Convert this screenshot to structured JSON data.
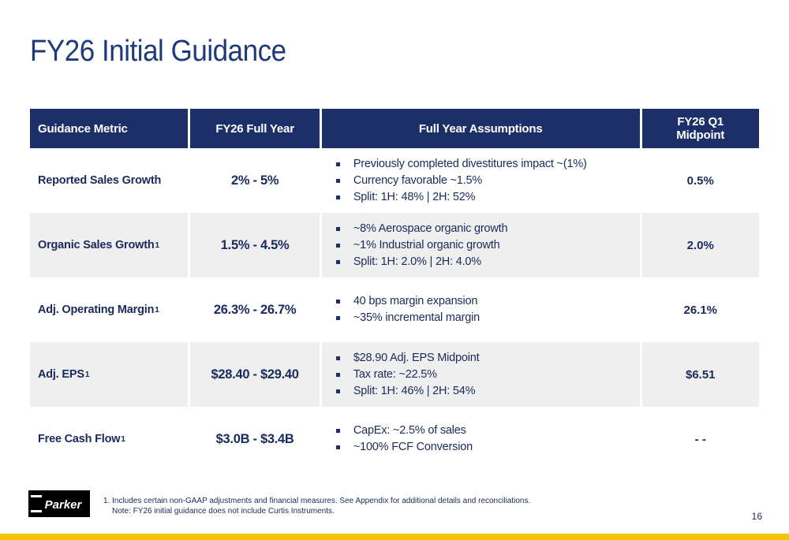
{
  "title": "FY26 Initial Guidance",
  "table": {
    "headers": {
      "metric": "Guidance Metric",
      "full_year": "FY26 Full Year",
      "assumptions": "Full Year Assumptions",
      "q1_line1": "FY26 Q1",
      "q1_line2": "Midpoint"
    },
    "rows": [
      {
        "metric": "Reported Sales Growth",
        "sup": "",
        "full_year": "2% - 5%",
        "assumptions": [
          "Previously completed divestitures impact ~(1%)",
          "Currency favorable ~1.5%",
          "Split: 1H: 48% | 2H: 52%"
        ],
        "q1": "0.5%"
      },
      {
        "metric": "Organic Sales Growth",
        "sup": "1",
        "full_year": "1.5% - 4.5%",
        "assumptions": [
          "~8% Aerospace organic growth",
          "~1% Industrial organic growth",
          "Split: 1H: 2.0% | 2H: 4.0%"
        ],
        "q1": "2.0%"
      },
      {
        "metric": "Adj. Operating Margin",
        "sup": "1",
        "full_year": "26.3% - 26.7%",
        "assumptions": [
          "40 bps margin expansion",
          "~35% incremental margin"
        ],
        "q1": "26.1%"
      },
      {
        "metric": "Adj. EPS ",
        "sup": "1",
        "full_year": "$28.40 - $29.40",
        "assumptions": [
          "$28.90 Adj. EPS Midpoint",
          "Tax rate: ~22.5%",
          "Split: 1H: 46% | 2H: 54%"
        ],
        "q1": "$6.51"
      },
      {
        "metric": "Free Cash Flow",
        "sup": "1",
        "full_year": "$3.0B - $3.4B",
        "assumptions": [
          "CapEx: ~2.5% of sales",
          "~100% FCF Conversion"
        ],
        "q1": "- -"
      }
    ]
  },
  "footer": {
    "logo_text": "Parker",
    "footnote_line1": "1. Includes certain non-GAAP adjustments and financial measures. See Appendix for additional details and reconciliations.",
    "footnote_line2": "Note: FY26 initial guidance does not include Curtis Instruments.",
    "page_number": "16"
  },
  "colors": {
    "header_bg": "#1d2f68",
    "title": "#1f3a7a",
    "alt_row": "#efefef",
    "accent_bar": "#f5c400"
  }
}
